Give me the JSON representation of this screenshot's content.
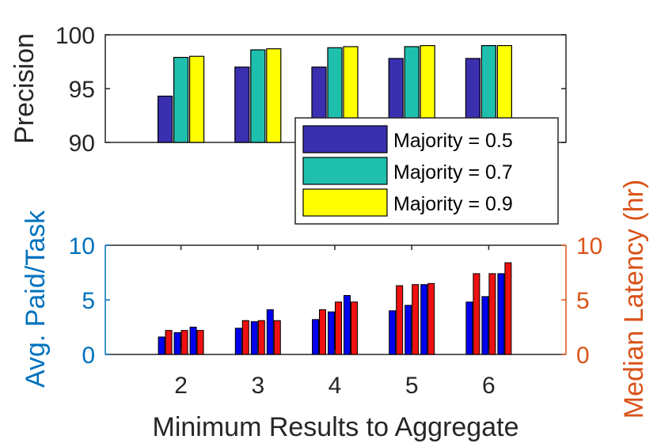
{
  "colors": {
    "majority_05": "#3a2fae",
    "majority_07": "#1fbfae",
    "majority_09": "#ffff00",
    "paid_bar": "#0000ee",
    "latency_bar": "#ee1111",
    "left_axis_blue": "#0072bd",
    "right_axis_orange": "#d95319",
    "axis_dark": "#262626"
  },
  "chart_data": [
    {
      "type": "bar",
      "categories": [
        "2",
        "3",
        "4",
        "5",
        "6"
      ],
      "ylabel": "Precision",
      "ylim": [
        90,
        100
      ],
      "yticks": [
        "90",
        "95",
        "100"
      ],
      "series": [
        {
          "name": "Majority = 0.5",
          "values": [
            94.3,
            97.0,
            97.0,
            97.8,
            97.8
          ]
        },
        {
          "name": "Majority = 0.7",
          "values": [
            97.9,
            98.6,
            98.8,
            98.9,
            99.0
          ]
        },
        {
          "name": "Majority = 0.9",
          "values": [
            98.0,
            98.7,
            98.9,
            99.0,
            99.0
          ]
        }
      ],
      "legend_position": "bottom-right"
    },
    {
      "type": "bar",
      "categories": [
        "2",
        "3",
        "4",
        "5",
        "6"
      ],
      "xlabel": "Minimum Results to Aggregate",
      "ylabel": "Avg. Paid/Task",
      "ylabel_right": "Median Latency (hr)",
      "ylim": [
        0,
        10
      ],
      "ylim_right": [
        0,
        10
      ],
      "yticks": [
        "0",
        "5",
        "10"
      ],
      "yticks_right": [
        "0",
        "5",
        "10"
      ],
      "series": [
        {
          "axis": "left",
          "values": [
            [
              1.6,
              2.0,
              2.5
            ],
            [
              2.4,
              3.0,
              4.1
            ],
            [
              3.2,
              3.9,
              5.4
            ],
            [
              4.0,
              4.5,
              6.4
            ],
            [
              4.8,
              5.3,
              7.4
            ]
          ]
        },
        {
          "axis": "right",
          "values": [
            [
              2.2,
              2.2,
              2.2
            ],
            [
              3.1,
              3.1,
              3.1
            ],
            [
              4.1,
              4.8,
              4.8
            ],
            [
              6.3,
              6.4,
              6.5
            ],
            [
              7.4,
              7.4,
              8.4
            ]
          ]
        }
      ]
    }
  ]
}
